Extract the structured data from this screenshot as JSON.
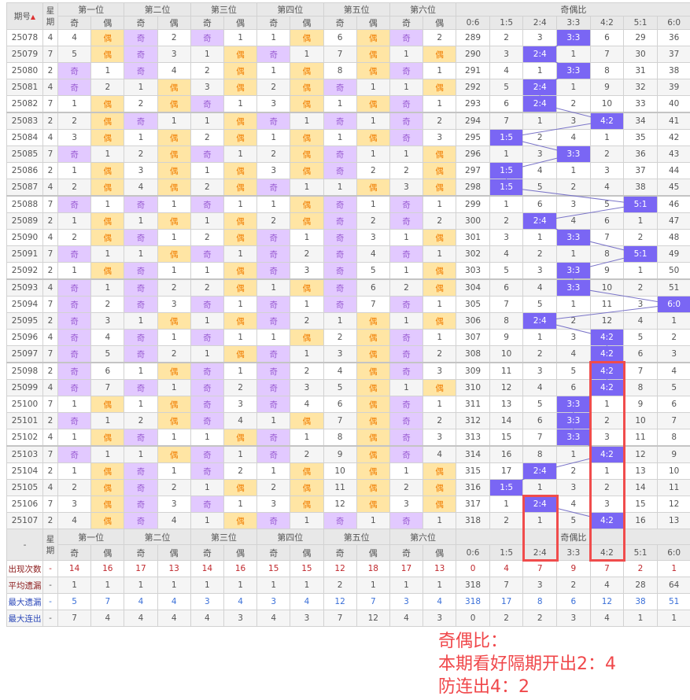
{
  "header": {
    "id_label": "期号",
    "sort_icon": "sort-arrows-icon",
    "week_label": "星期",
    "positions": [
      "第一位",
      "第二位",
      "第三位",
      "第四位",
      "第五位",
      "第六位"
    ],
    "odd": "奇",
    "even": "偶",
    "ratio_label": "奇偶比",
    "ratios": [
      "0:6",
      "1:5",
      "2:4",
      "3:3",
      "4:2",
      "5:1",
      "6:0"
    ]
  },
  "rows": [
    {
      "id": "25078",
      "week": "4",
      "pos": [
        "4",
        "偶",
        "奇",
        "2",
        "奇",
        "1",
        "1",
        "偶",
        "6",
        "偶",
        "奇",
        "2"
      ],
      "ratio": [
        "289",
        "2",
        "3",
        "3:3",
        "6",
        "29",
        "36"
      ]
    },
    {
      "id": "25079",
      "week": "7",
      "pos": [
        "5",
        "偶",
        "奇",
        "3",
        "1",
        "偶",
        "奇",
        "1",
        "7",
        "偶",
        "1",
        "偶"
      ],
      "ratio": [
        "290",
        "3",
        "2:4",
        "1",
        "7",
        "30",
        "37"
      ]
    },
    {
      "id": "25080",
      "week": "2",
      "pos": [
        "奇",
        "1",
        "奇",
        "4",
        "2",
        "偶",
        "1",
        "偶",
        "8",
        "偶",
        "奇",
        "1"
      ],
      "ratio": [
        "291",
        "4",
        "1",
        "3:3",
        "8",
        "31",
        "38"
      ]
    },
    {
      "id": "25081",
      "week": "4",
      "pos": [
        "奇",
        "2",
        "1",
        "偶",
        "3",
        "偶",
        "2",
        "偶",
        "奇",
        "1",
        "1",
        "偶"
      ],
      "ratio": [
        "292",
        "5",
        "2:4",
        "1",
        "9",
        "32",
        "39"
      ]
    },
    {
      "id": "25082",
      "week": "7",
      "pos": [
        "1",
        "偶",
        "2",
        "偶",
        "奇",
        "1",
        "3",
        "偶",
        "1",
        "偶",
        "奇",
        "1"
      ],
      "ratio": [
        "293",
        "6",
        "2:4",
        "2",
        "10",
        "33",
        "40"
      ]
    },
    {
      "id": "25083",
      "week": "2",
      "pos": [
        "2",
        "偶",
        "奇",
        "1",
        "1",
        "偶",
        "奇",
        "1",
        "奇",
        "1",
        "奇",
        "2"
      ],
      "ratio": [
        "294",
        "7",
        "1",
        "3",
        "4:2",
        "34",
        "41"
      ]
    },
    {
      "id": "25084",
      "week": "4",
      "pos": [
        "3",
        "偶",
        "1",
        "偶",
        "2",
        "偶",
        "1",
        "偶",
        "1",
        "偶",
        "奇",
        "3"
      ],
      "ratio": [
        "295",
        "1:5",
        "2",
        "4",
        "1",
        "35",
        "42"
      ]
    },
    {
      "id": "25085",
      "week": "7",
      "pos": [
        "奇",
        "1",
        "2",
        "偶",
        "奇",
        "1",
        "2",
        "偶",
        "奇",
        "1",
        "1",
        "偶"
      ],
      "ratio": [
        "296",
        "1",
        "3",
        "3:3",
        "2",
        "36",
        "43"
      ]
    },
    {
      "id": "25086",
      "week": "2",
      "pos": [
        "1",
        "偶",
        "3",
        "偶",
        "1",
        "偶",
        "3",
        "偶",
        "奇",
        "2",
        "2",
        "偶"
      ],
      "ratio": [
        "297",
        "1:5",
        "4",
        "1",
        "3",
        "37",
        "44"
      ]
    },
    {
      "id": "25087",
      "week": "4",
      "pos": [
        "2",
        "偶",
        "4",
        "偶",
        "2",
        "偶",
        "奇",
        "1",
        "1",
        "偶",
        "3",
        "偶"
      ],
      "ratio": [
        "298",
        "1:5",
        "5",
        "2",
        "4",
        "38",
        "45"
      ]
    },
    {
      "id": "25088",
      "week": "7",
      "pos": [
        "奇",
        "1",
        "奇",
        "1",
        "奇",
        "1",
        "1",
        "偶",
        "奇",
        "1",
        "奇",
        "1"
      ],
      "ratio": [
        "299",
        "1",
        "6",
        "3",
        "5",
        "5:1",
        "46"
      ]
    },
    {
      "id": "25089",
      "week": "2",
      "pos": [
        "1",
        "偶",
        "1",
        "偶",
        "1",
        "偶",
        "2",
        "偶",
        "奇",
        "2",
        "奇",
        "2"
      ],
      "ratio": [
        "300",
        "2",
        "2:4",
        "4",
        "6",
        "1",
        "47"
      ]
    },
    {
      "id": "25090",
      "week": "4",
      "pos": [
        "2",
        "偶",
        "奇",
        "1",
        "2",
        "偶",
        "奇",
        "1",
        "奇",
        "3",
        "1",
        "偶"
      ],
      "ratio": [
        "301",
        "3",
        "1",
        "3:3",
        "7",
        "2",
        "48"
      ]
    },
    {
      "id": "25091",
      "week": "7",
      "pos": [
        "奇",
        "1",
        "1",
        "偶",
        "奇",
        "1",
        "奇",
        "2",
        "奇",
        "4",
        "奇",
        "1"
      ],
      "ratio": [
        "302",
        "4",
        "2",
        "1",
        "8",
        "5:1",
        "49"
      ]
    },
    {
      "id": "25092",
      "week": "2",
      "pos": [
        "1",
        "偶",
        "奇",
        "1",
        "1",
        "偶",
        "奇",
        "3",
        "奇",
        "5",
        "1",
        "偶"
      ],
      "ratio": [
        "303",
        "5",
        "3",
        "3:3",
        "9",
        "1",
        "50"
      ]
    },
    {
      "id": "25093",
      "week": "4",
      "pos": [
        "奇",
        "1",
        "奇",
        "2",
        "2",
        "偶",
        "1",
        "偶",
        "奇",
        "6",
        "2",
        "偶"
      ],
      "ratio": [
        "304",
        "6",
        "4",
        "3:3",
        "10",
        "2",
        "51"
      ]
    },
    {
      "id": "25094",
      "week": "7",
      "pos": [
        "奇",
        "2",
        "奇",
        "3",
        "奇",
        "1",
        "奇",
        "1",
        "奇",
        "7",
        "奇",
        "1"
      ],
      "ratio": [
        "305",
        "7",
        "5",
        "1",
        "11",
        "3",
        "6:0"
      ]
    },
    {
      "id": "25095",
      "week": "2",
      "pos": [
        "奇",
        "3",
        "1",
        "偶",
        "1",
        "偶",
        "奇",
        "2",
        "1",
        "偶",
        "1",
        "偶"
      ],
      "ratio": [
        "306",
        "8",
        "2:4",
        "2",
        "12",
        "4",
        "1"
      ]
    },
    {
      "id": "25096",
      "week": "4",
      "pos": [
        "奇",
        "4",
        "奇",
        "1",
        "奇",
        "1",
        "1",
        "偶",
        "2",
        "偶",
        "奇",
        "1"
      ],
      "ratio": [
        "307",
        "9",
        "1",
        "3",
        "4:2",
        "5",
        "2"
      ]
    },
    {
      "id": "25097",
      "week": "7",
      "pos": [
        "奇",
        "5",
        "奇",
        "2",
        "1",
        "偶",
        "奇",
        "1",
        "3",
        "偶",
        "奇",
        "2"
      ],
      "ratio": [
        "308",
        "10",
        "2",
        "4",
        "4:2",
        "6",
        "3"
      ]
    },
    {
      "id": "25098",
      "week": "2",
      "pos": [
        "奇",
        "6",
        "1",
        "偶",
        "奇",
        "1",
        "奇",
        "2",
        "4",
        "偶",
        "奇",
        "3"
      ],
      "ratio": [
        "309",
        "11",
        "3",
        "5",
        "4:2",
        "7",
        "4"
      ]
    },
    {
      "id": "25099",
      "week": "4",
      "pos": [
        "奇",
        "7",
        "奇",
        "1",
        "奇",
        "2",
        "奇",
        "3",
        "5",
        "偶",
        "1",
        "偶"
      ],
      "ratio": [
        "310",
        "12",
        "4",
        "6",
        "4:2",
        "8",
        "5"
      ]
    },
    {
      "id": "25100",
      "week": "7",
      "pos": [
        "1",
        "偶",
        "1",
        "偶",
        "奇",
        "3",
        "奇",
        "4",
        "6",
        "偶",
        "奇",
        "1"
      ],
      "ratio": [
        "311",
        "13",
        "5",
        "3:3",
        "1",
        "9",
        "6"
      ]
    },
    {
      "id": "25101",
      "week": "2",
      "pos": [
        "奇",
        "1",
        "2",
        "偶",
        "奇",
        "4",
        "1",
        "偶",
        "7",
        "偶",
        "奇",
        "2"
      ],
      "ratio": [
        "312",
        "14",
        "6",
        "3:3",
        "2",
        "10",
        "7"
      ]
    },
    {
      "id": "25102",
      "week": "4",
      "pos": [
        "1",
        "偶",
        "奇",
        "1",
        "1",
        "偶",
        "奇",
        "1",
        "8",
        "偶",
        "奇",
        "3"
      ],
      "ratio": [
        "313",
        "15",
        "7",
        "3:3",
        "3",
        "11",
        "8"
      ]
    },
    {
      "id": "25103",
      "week": "7",
      "pos": [
        "奇",
        "1",
        "1",
        "偶",
        "奇",
        "1",
        "奇",
        "2",
        "9",
        "偶",
        "奇",
        "4"
      ],
      "ratio": [
        "314",
        "16",
        "8",
        "1",
        "4:2",
        "12",
        "9"
      ]
    },
    {
      "id": "25104",
      "week": "2",
      "pos": [
        "1",
        "偶",
        "奇",
        "1",
        "奇",
        "2",
        "1",
        "偶",
        "10",
        "偶",
        "1",
        "偶"
      ],
      "ratio": [
        "315",
        "17",
        "2:4",
        "2",
        "1",
        "13",
        "10"
      ]
    },
    {
      "id": "25105",
      "week": "4",
      "pos": [
        "2",
        "偶",
        "奇",
        "2",
        "1",
        "偶",
        "2",
        "偶",
        "11",
        "偶",
        "2",
        "偶"
      ],
      "ratio": [
        "316",
        "1:5",
        "1",
        "3",
        "2",
        "14",
        "11"
      ]
    },
    {
      "id": "25106",
      "week": "7",
      "pos": [
        "3",
        "偶",
        "奇",
        "3",
        "奇",
        "1",
        "3",
        "偶",
        "12",
        "偶",
        "3",
        "偶"
      ],
      "ratio": [
        "317",
        "1",
        "2:4",
        "4",
        "3",
        "15",
        "12"
      ]
    },
    {
      "id": "25107",
      "week": "2",
      "pos": [
        "4",
        "偶",
        "奇",
        "4",
        "1",
        "偶",
        "奇",
        "1",
        "奇",
        "1",
        "奇",
        "1"
      ],
      "ratio": [
        "318",
        "2",
        "1",
        "5",
        "4:2",
        "16",
        "13"
      ]
    }
  ],
  "footer": {
    "dash": "-",
    "stats": [
      {
        "label": "出现次数",
        "week": "-",
        "pos": [
          "14",
          "16",
          "17",
          "13",
          "14",
          "16",
          "15",
          "15",
          "12",
          "18",
          "17",
          "13"
        ],
        "ratio": [
          "0",
          "4",
          "7",
          "9",
          "7",
          "2",
          "1"
        ]
      },
      {
        "label": "平均遗漏",
        "week": "-",
        "pos": [
          "1",
          "1",
          "1",
          "1",
          "1",
          "1",
          "1",
          "1",
          "2",
          "1",
          "1",
          "1"
        ],
        "ratio": [
          "318",
          "7",
          "3",
          "2",
          "4",
          "28",
          "64"
        ]
      },
      {
        "label": "最大遗漏",
        "week": "-",
        "pos": [
          "5",
          "7",
          "4",
          "4",
          "3",
          "4",
          "3",
          "4",
          "12",
          "7",
          "3",
          "4"
        ],
        "ratio": [
          "318",
          "17",
          "8",
          "6",
          "12",
          "38",
          "51"
        ]
      },
      {
        "label": "最大连出",
        "week": "-",
        "pos": [
          "7",
          "4",
          "4",
          "4",
          "4",
          "3",
          "4",
          "3",
          "7",
          "12",
          "4",
          "3"
        ],
        "ratio": [
          "0",
          "2",
          "2",
          "3",
          "4",
          "1",
          "1"
        ]
      }
    ]
  },
  "annotation": {
    "lines": [
      "奇偶比：",
      "本期看好隔期开出2：4",
      "防连出4：2"
    ]
  },
  "colors": {
    "odd_bg": "#e2c9ff",
    "odd_text": "#9b5fd3",
    "even_bg": "#ffe5a4",
    "even_text": "#f07d00",
    "ratio_hit": "#7a66f4",
    "highlight_box": "#f04c4c",
    "annotation": "#f0474a"
  }
}
